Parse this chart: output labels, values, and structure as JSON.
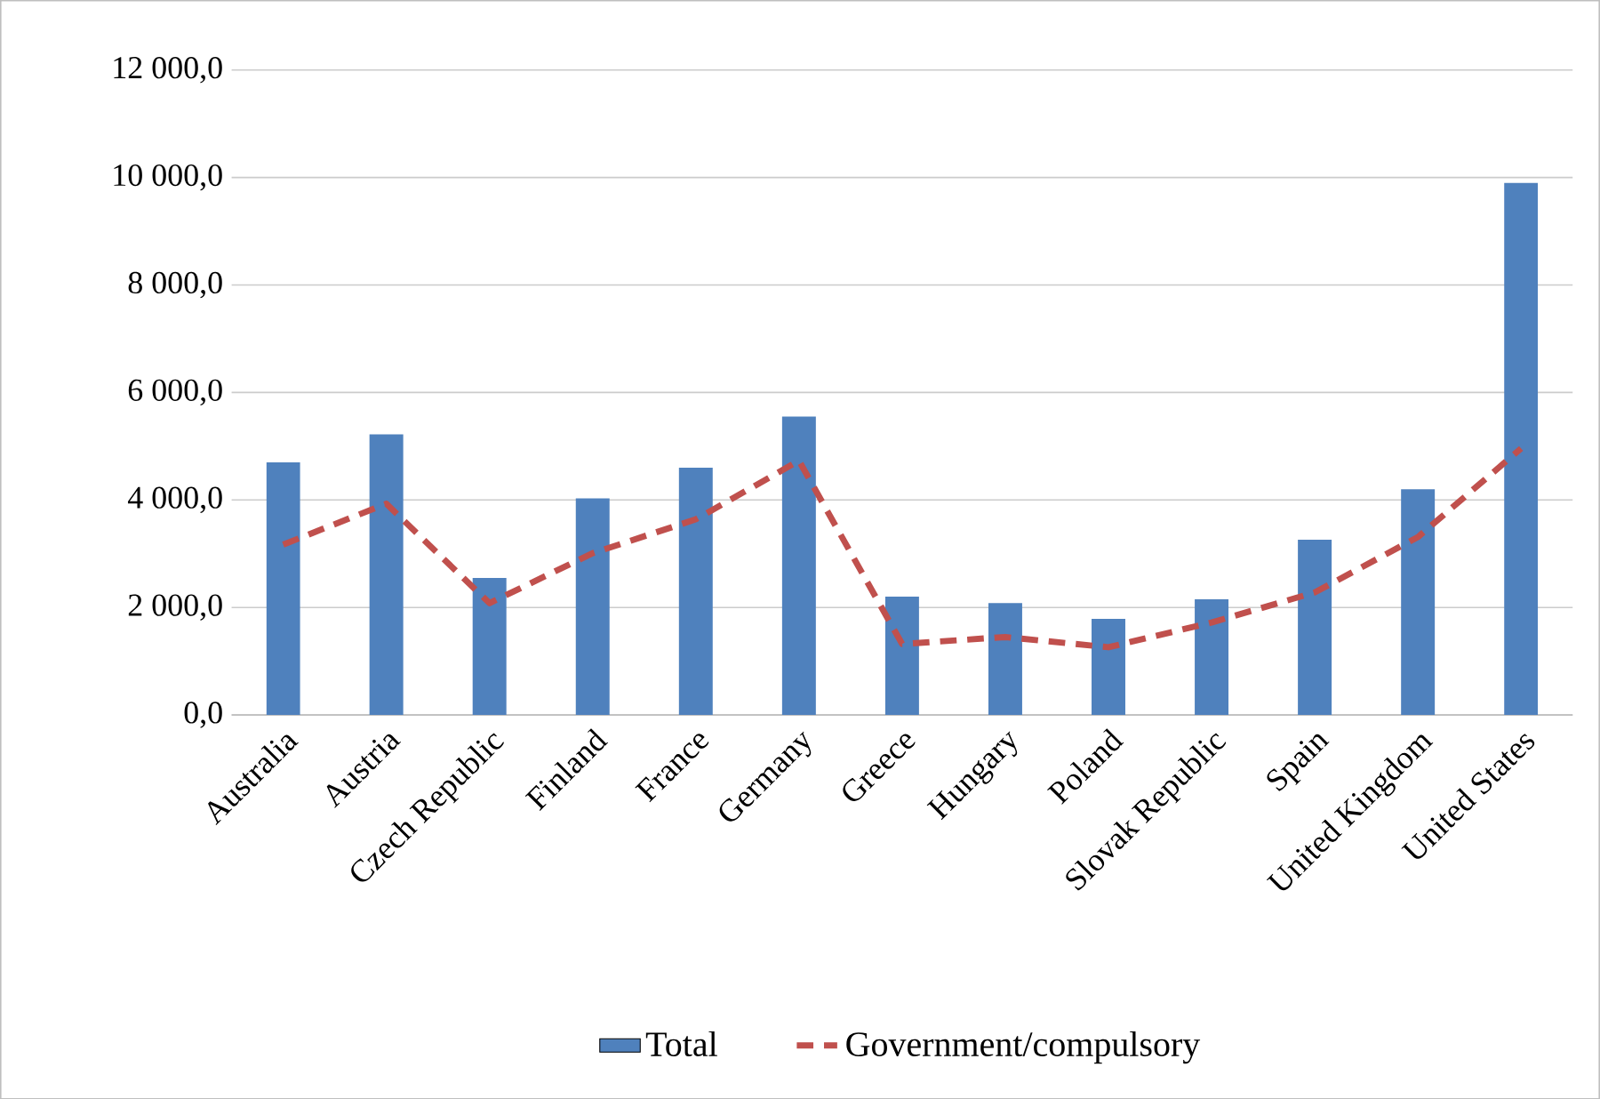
{
  "chart_data": {
    "type": "bar",
    "categories": [
      "Australia",
      "Austria",
      "Czech Republic",
      "Finland",
      "France",
      "Germany",
      "Greece",
      "Hungary",
      "Poland",
      "Slovak Republic",
      "Spain",
      "United Kingdom",
      "United States"
    ],
    "series": [
      {
        "name": "Total",
        "color": "#4f81bd",
        "values": [
          4700,
          5220,
          2550,
          4030,
          4600,
          5550,
          2200,
          2080,
          1790,
          2150,
          3260,
          4200,
          9900
        ]
      },
      {
        "name": "Government/compulsory",
        "type": "line",
        "color": "#c0504d",
        "line_style": "dashed",
        "marker": "none",
        "values": [
          3170,
          3930,
          2080,
          3010,
          3640,
          4730,
          1320,
          1450,
          1260,
          1720,
          2280,
          3310,
          4960
        ]
      }
    ],
    "ylim": [
      0,
      12000
    ],
    "yticks": [
      {
        "value": 0,
        "label": "0,0"
      },
      {
        "value": 2000,
        "label": "2 000,0"
      },
      {
        "value": 4000,
        "label": "4 000,0"
      },
      {
        "value": 6000,
        "label": "6 000,0"
      },
      {
        "value": 8000,
        "label": "8 000,0"
      },
      {
        "value": 10000,
        "label": "10 000,0"
      },
      {
        "value": 12000,
        "label": "12 000,0"
      }
    ],
    "grid": "y",
    "legend": "bottom"
  }
}
